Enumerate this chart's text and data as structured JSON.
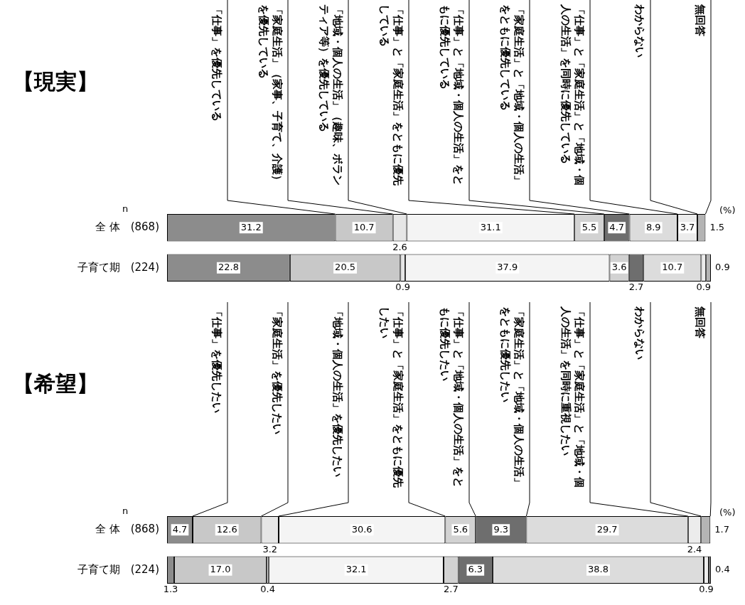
{
  "chart_data": [
    {
      "type": "bar",
      "orientation": "horizontal",
      "stacked": true,
      "title": "【現実】",
      "categories": [
        "全 体　(868)",
        "子育て期　(224)"
      ],
      "data_labels": true,
      "legend": "top",
      "tick_labels": "y",
      "annotations": [
        "n",
        "(%)"
      ],
      "series": [
        {
          "name": "「仕事」を優先している",
          "color": "#8c8c8c",
          "values": [
            31.2,
            22.8
          ]
        },
        {
          "name": "「家庭生活」（家事、子育て、介護）を優先している",
          "color": "#c8c8c8",
          "values": [
            10.7,
            20.5
          ]
        },
        {
          "name": "「地域・個人の生活」（趣味、ボランティア等）を優先している",
          "color": "#e6e6e6",
          "values": [
            2.6,
            0.9
          ]
        },
        {
          "name": "「仕事」と「家庭生活」をともに優先している",
          "color": "#f4f4f4",
          "values": [
            31.1,
            37.9
          ]
        },
        {
          "name": "「仕事」と「地域・個人の生活」をともに優先している",
          "color": "#d2d2d2",
          "values": [
            5.5,
            3.6
          ]
        },
        {
          "name": "「家庭生活」と「地域・個人の生活」をともに優先している",
          "color": "#6e6e6e",
          "values": [
            4.7,
            2.7
          ]
        },
        {
          "name": "「仕事」と「家庭生活」と「地域・個人の生活」を同時に優先している",
          "color": "#dcdcdc",
          "values": [
            8.9,
            10.7
          ]
        },
        {
          "name": "わからない",
          "color": "#ececec",
          "values": [
            3.7,
            0.9
          ]
        },
        {
          "name": "無回答",
          "color": "#b4b4b4",
          "values": [
            1.5,
            0.9
          ]
        }
      ]
    },
    {
      "type": "bar",
      "orientation": "horizontal",
      "stacked": true,
      "title": "【希望】",
      "categories": [
        "全 体　(868)",
        "子育て期　(224)"
      ],
      "data_labels": true,
      "legend": "top",
      "tick_labels": "y",
      "annotations": [
        "n",
        "(%)"
      ],
      "series": [
        {
          "name": "「仕事」を優先したい",
          "color": "#8c8c8c",
          "values": [
            4.7,
            1.3
          ]
        },
        {
          "name": "「家庭生活」を優先したい",
          "color": "#c8c8c8",
          "values": [
            12.6,
            17.0
          ],
          "value_labels": [
            "12.6",
            "17.0"
          ]
        },
        {
          "name": "「地域・個人の生活」を優先したい",
          "color": "#e6e6e6",
          "values": [
            3.2,
            0.4
          ]
        },
        {
          "name": "「仕事」と「家庭生活」をともに優先したい",
          "color": "#f4f4f4",
          "values": [
            30.6,
            32.1
          ]
        },
        {
          "name": "「仕事」と「地域・個人の生活」をともに優先したい",
          "color": "#d2d2d2",
          "values": [
            5.6,
            2.7
          ]
        },
        {
          "name": "「家庭生活」と「地域・個人の生活」をともに優先したい",
          "color": "#6e6e6e",
          "values": [
            9.3,
            6.3
          ]
        },
        {
          "name": "「仕事」と「家庭生活」と「地域・個人の生活」を同時に重視したい",
          "color": "#dcdcdc",
          "values": [
            29.7,
            38.8
          ]
        },
        {
          "name": "わからない",
          "color": "#ececec",
          "values": [
            2.4,
            0.9
          ]
        },
        {
          "name": "無回答",
          "color": "#b4b4b4",
          "values": [
            1.7,
            0.4
          ]
        }
      ]
    }
  ]
}
